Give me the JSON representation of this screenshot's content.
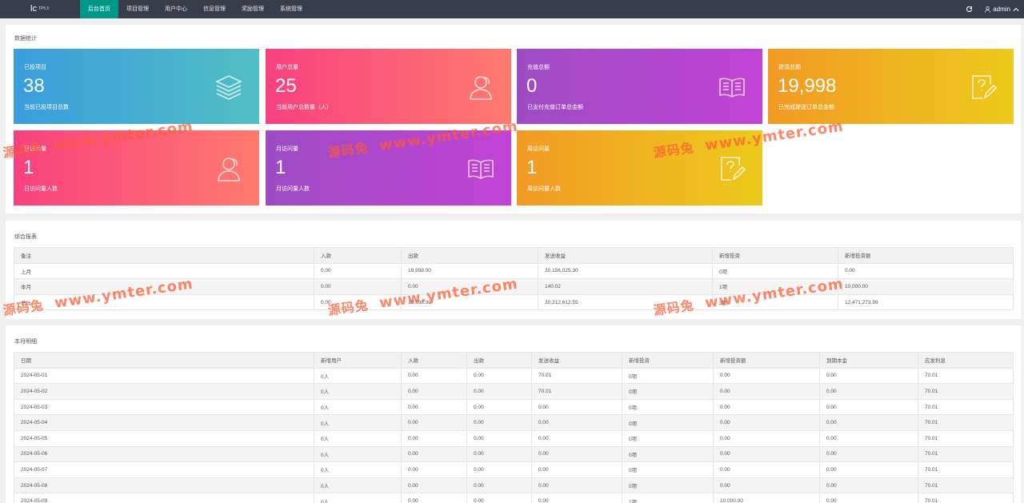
{
  "header": {
    "logo": "lc",
    "logo_sup": "TP5.5",
    "nav": [
      "后台首页",
      "项目管理",
      "用户中心",
      "信息管理",
      "奖励管理",
      "系统管理"
    ],
    "admin": "admin"
  },
  "stats": {
    "title": "数据统计",
    "cards": [
      {
        "title": "已投项目",
        "value": "38",
        "desc": "当前已投项目总数",
        "icon": "layers-icon"
      },
      {
        "title": "用户总量",
        "value": "25",
        "desc": "当前用户总数量（人）",
        "icon": "users-icon"
      },
      {
        "title": "充值总额",
        "value": "0",
        "desc": "已支付充值订单总金额",
        "icon": "book-icon"
      },
      {
        "title": "提现总额",
        "value": "19,998",
        "desc": "已完成提现订单总金额",
        "icon": "edit-icon"
      },
      {
        "title": "日访问量",
        "value": "1",
        "desc": "日访问量人数",
        "icon": "users-icon"
      },
      {
        "title": "月访问量",
        "value": "1",
        "desc": "月访问量人数",
        "icon": "book-icon"
      },
      {
        "title": "周访问量",
        "value": "1",
        "desc": "周访问量人数",
        "icon": "edit-icon"
      }
    ]
  },
  "report": {
    "title": "综合报表",
    "columns": [
      "备注",
      "入款",
      "出款",
      "发送收益",
      "新增投资",
      "新增投资额"
    ],
    "rows": [
      [
        "上月",
        "0.00",
        "19,998.00",
        "30,156,025.30",
        "0项",
        "0.00"
      ],
      [
        "本月",
        "0.00",
        "0.00",
        "140.02",
        "1项",
        "10,000.00"
      ],
      [
        "总计",
        "0.00",
        "19,998.00",
        "30,312,612.55",
        "3项",
        "12,471,273.99"
      ]
    ]
  },
  "monthly": {
    "title": "本月明细",
    "columns": [
      "日期",
      "新增用户",
      "入款",
      "出款",
      "发送收益",
      "新增投资",
      "新增投资额",
      "到期本金",
      "应发利息"
    ],
    "rows": [
      [
        "2024-05-01",
        "0人",
        "0.00",
        "0.00",
        "70.01",
        "0项",
        "0.00",
        "0.00",
        "70.01"
      ],
      [
        "2024-05-02",
        "0人",
        "0.00",
        "0.00",
        "70.01",
        "0项",
        "0.00",
        "0.00",
        "70.01"
      ],
      [
        "2024-05-03",
        "0人",
        "0.00",
        "0.00",
        "0.00",
        "0项",
        "0.00",
        "0.00",
        "70.01"
      ],
      [
        "2024-05-04",
        "0人",
        "0.00",
        "0.00",
        "0.00",
        "0项",
        "0.00",
        "0.00",
        "70.01"
      ],
      [
        "2024-05-05",
        "0人",
        "0.00",
        "0.00",
        "0.00",
        "0项",
        "0.00",
        "0.00",
        "70.01"
      ],
      [
        "2024-05-06",
        "0人",
        "0.00",
        "0.00",
        "0.00",
        "0项",
        "0.00",
        "0.00",
        "70.01"
      ],
      [
        "2024-05-07",
        "0人",
        "0.00",
        "0.00",
        "0.00",
        "0项",
        "0.00",
        "0.00",
        "70.01"
      ],
      [
        "2024-05-08",
        "0人",
        "0.00",
        "0.00",
        "0.00",
        "0项",
        "0.00",
        "0.00",
        "70.01"
      ],
      [
        "2024-05-09",
        "0人",
        "0.00",
        "0.00",
        "0.00",
        "1项",
        "10,000.00",
        "0.00",
        "70.01"
      ]
    ]
  },
  "watermark": {
    "cn": "源码兔",
    "url": "www.ymter.com"
  }
}
